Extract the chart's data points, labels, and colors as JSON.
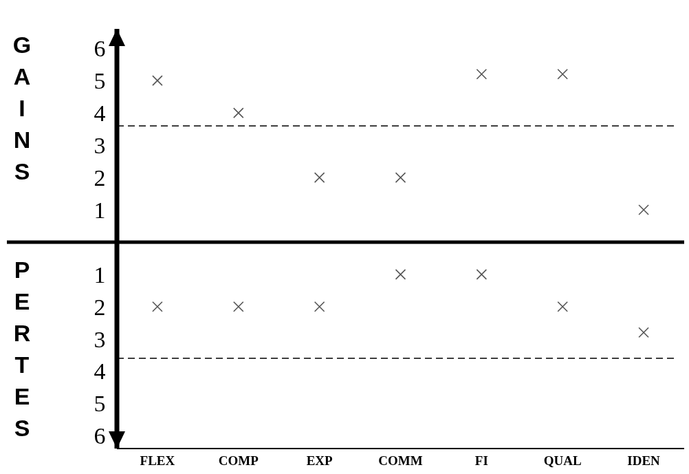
{
  "chart_data": [
    {
      "type": "scatter",
      "categories": [
        null,
        null,
        null,
        null,
        null,
        null,
        null
      ],
      "series": [
        {
          "color": "#555555",
          "values": [
            5,
            4,
            2,
            2,
            5.2,
            5.2,
            1
          ]
        }
      ],
      "ylim": [
        0,
        6.6
      ],
      "yticks": [
        1,
        2,
        3,
        4,
        5,
        6
      ],
      "tick_labels": "y",
      "ref_lines": [
        {
          "axis": "y",
          "value": 3.6,
          "line_style": "dashed",
          "color": "#000000"
        }
      ],
      "annotations": [
        "GAINS"
      ],
      "marker": "cross",
      "grid": false
    },
    {
      "type": "scatter",
      "categories": [
        "FLEX",
        "COMP",
        "EXP",
        "COMM",
        "FI",
        "QUAL",
        "IDEN"
      ],
      "series": [
        {
          "color": "#555555",
          "values": [
            2,
            2,
            2,
            1,
            1,
            2,
            2.8
          ]
        }
      ],
      "ylim": [
        6.4,
        0
      ],
      "yticks": [
        1,
        2,
        3,
        4,
        5,
        6
      ],
      "ref_lines": [
        {
          "axis": "y",
          "value": 3.6,
          "line_style": "dashed",
          "color": "#000000"
        }
      ],
      "annotations": [
        "PERTES"
      ],
      "marker": "cross",
      "grid": false
    }
  ]
}
